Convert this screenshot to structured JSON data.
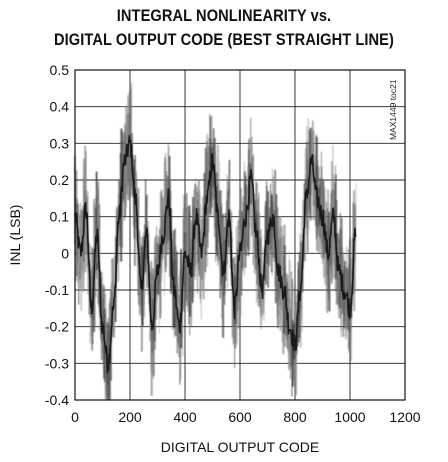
{
  "chart_data": {
    "type": "line",
    "title_line1": "INTEGRAL NONLINEARITY vs.",
    "title_line2": "DIGITAL OUTPUT CODE (BEST STRAIGHT LINE)",
    "xlabel": "DIGITAL OUTPUT CODE",
    "ylabel": "INL (LSB)",
    "tag": "MAX1449 toc21",
    "xlim": [
      0,
      1200
    ],
    "ylim": [
      -0.4,
      0.5
    ],
    "xticks": [
      0,
      200,
      400,
      600,
      800,
      1000,
      1200
    ],
    "yticks": [
      0.5,
      0.4,
      0.3,
      0.2,
      0.1,
      0,
      -0.1,
      -0.2,
      -0.3,
      -0.4
    ],
    "xtick_labels": [
      "0",
      "200",
      "400",
      "600",
      "800",
      "1000",
      "1200"
    ],
    "ytick_labels": [
      "0.5",
      "0.4",
      "0.3",
      "0.2",
      "0.1",
      "0",
      "-0.1",
      "-0.2",
      "-0.3",
      "-0.4"
    ],
    "grid": true,
    "series": [
      {
        "color": "#1a1a1a",
        "x": [
          0,
          20,
          40,
          60,
          80,
          100,
          120,
          140,
          160,
          180,
          200,
          220,
          240,
          260,
          280,
          300,
          320,
          340,
          360,
          380,
          400,
          420,
          440,
          460,
          480,
          500,
          520,
          540,
          560,
          580,
          600,
          620,
          640,
          660,
          680,
          700,
          720,
          740,
          760,
          780,
          800,
          820,
          840,
          860,
          880,
          900,
          920,
          940,
          960,
          980,
          1000,
          1020
        ],
        "y": [
          0.1,
          0.0,
          0.12,
          -0.15,
          0.05,
          -0.2,
          -0.3,
          -0.15,
          0.1,
          0.25,
          0.3,
          0.15,
          -0.1,
          0.05,
          -0.2,
          -0.05,
          0.05,
          0.15,
          -0.1,
          -0.2,
          0.0,
          -0.05,
          0.1,
          0.0,
          0.15,
          0.25,
          0.1,
          -0.05,
          0.1,
          -0.15,
          0.0,
          0.1,
          0.2,
          0.05,
          -0.1,
          0.05,
          0.1,
          -0.05,
          -0.1,
          -0.2,
          -0.25,
          -0.1,
          0.15,
          0.25,
          0.15,
          0.1,
          0.0,
          0.1,
          -0.05,
          -0.1,
          -0.15,
          0.05
        ]
      }
    ]
  }
}
